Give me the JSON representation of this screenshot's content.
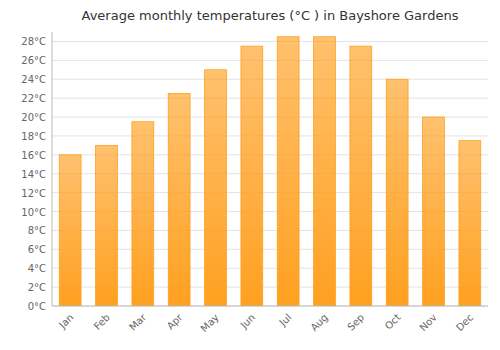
{
  "chart_data": {
    "type": "bar",
    "title": "Average monthly temperatures (°C ) in Bayshore Gardens",
    "categories": [
      "Jan",
      "Feb",
      "Mar",
      "Apr",
      "May",
      "Jun",
      "Jul",
      "Aug",
      "Sep",
      "Oct",
      "Nov",
      "Dec"
    ],
    "values": [
      16,
      17,
      19.5,
      22.5,
      25,
      27.5,
      28.5,
      28.5,
      27.5,
      24,
      20,
      17.5
    ],
    "color": "#FFA020",
    "ylim": [
      0,
      29
    ],
    "yticks": [
      {
        "value": 0,
        "label": "0°C"
      },
      {
        "value": 2,
        "label": "2°C"
      },
      {
        "value": 4,
        "label": "4°C"
      },
      {
        "value": 6,
        "label": "6°C"
      },
      {
        "value": 8,
        "label": "8°C"
      },
      {
        "value": 10,
        "label": "10°C"
      },
      {
        "value": 12,
        "label": "12°C"
      },
      {
        "value": 14,
        "label": "14°C"
      },
      {
        "value": 16,
        "label": "16°C"
      },
      {
        "value": 18,
        "label": "18°C"
      },
      {
        "value": 20,
        "label": "20°C"
      },
      {
        "value": 22,
        "label": "22°C"
      },
      {
        "value": 24,
        "label": "24°C"
      },
      {
        "value": 26,
        "label": "26°C"
      },
      {
        "value": 28,
        "label": "28°C"
      }
    ],
    "grid": true
  }
}
